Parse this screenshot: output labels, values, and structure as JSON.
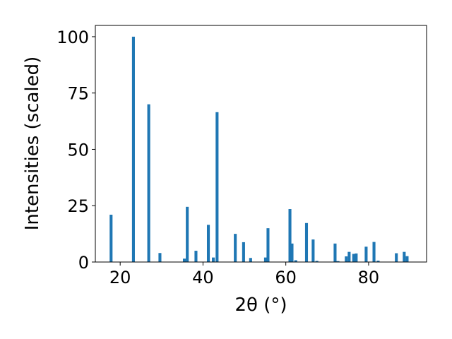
{
  "chart_data": {
    "type": "bar",
    "xlabel": "2θ (°)",
    "ylabel": "Intensities (scaled)",
    "xlim": [
      14,
      94
    ],
    "ylim": [
      0,
      105
    ],
    "xticks": [
      "20",
      "40",
      "60",
      "80"
    ],
    "xtick_values": [
      20,
      40,
      60,
      80
    ],
    "yticks": [
      "0",
      "25",
      "50",
      "75",
      "100"
    ],
    "ytick_values": [
      0,
      25,
      50,
      75,
      100
    ],
    "grid": false,
    "bar_color": "#1f77b4",
    "bar_width": 0.7,
    "x": [
      17.8,
      23.2,
      26.9,
      29.6,
      35.5,
      36.2,
      38.3,
      41.3,
      42.5,
      43.4,
      47.8,
      49.8,
      51.5,
      55.1,
      55.7,
      61.0,
      61.5,
      62.4,
      65.0,
      66.6,
      67.5,
      71.9,
      72.6,
      74.6,
      75.3,
      76.4,
      77.0,
      79.4,
      81.3,
      82.3,
      86.7,
      88.6,
      89.3
    ],
    "values": [
      21,
      100,
      70,
      4,
      1.5,
      24.5,
      5,
      16.5,
      2,
      66.5,
      12.5,
      8.8,
      1.8,
      2,
      15,
      23.5,
      8.2,
      0.8,
      17.3,
      10,
      0.5,
      8.2,
      0.4,
      2.5,
      4.5,
      3.6,
      3.8,
      6.8,
      8.9,
      0.6,
      3.9,
      4.5,
      2.6
    ]
  }
}
